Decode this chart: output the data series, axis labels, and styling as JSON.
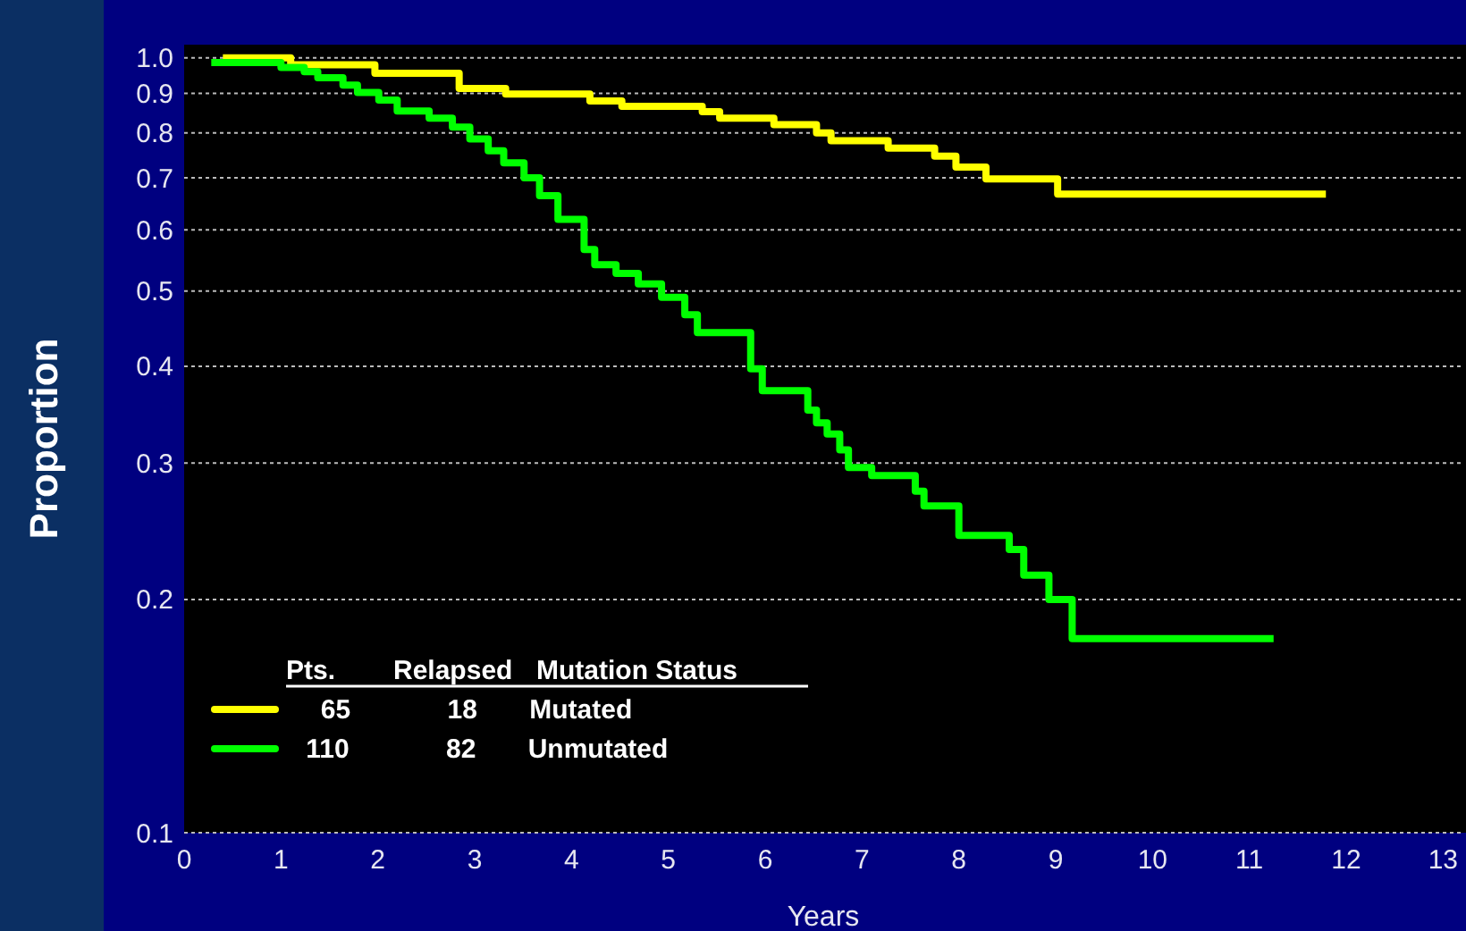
{
  "chart_data": {
    "type": "step",
    "xlabel": "Years",
    "ylabel": "Proportion",
    "log": "y",
    "xlim": [
      0,
      13.2
    ],
    "ylim": [
      0.1,
      1.04
    ],
    "xticks": [
      0,
      1,
      2,
      3,
      4,
      5,
      6,
      7,
      8,
      9,
      10,
      11,
      12,
      13
    ],
    "yticks": [
      {
        "value": 0.1,
        "label": "0.1"
      },
      0.2,
      0.3,
      0.4,
      0.5,
      0.6,
      0.7,
      0.8,
      0.9,
      {
        "value": 1,
        "label": "1.0"
      }
    ],
    "grid": "y",
    "legend": "bottom left",
    "legend_title": "Pts. Relapsed Mutation Status",
    "series": [
      {
        "name": "65 18 Mutated",
        "color": "#ffff00",
        "x": [
          0.4,
          1.1,
          1.97,
          2.84,
          3.32,
          4.19,
          4.52,
          5.35,
          5.53,
          6.09,
          6.53,
          6.68,
          7.27,
          7.75,
          7.97,
          8.28,
          9.02,
          11.79
        ],
        "values": [
          1.0,
          0.98,
          0.955,
          0.913,
          0.898,
          0.88,
          0.866,
          0.852,
          0.836,
          0.82,
          0.8,
          0.782,
          0.765,
          0.747,
          0.723,
          0.698,
          0.667,
          0.667
        ]
      },
      {
        "name": "110 82 Unmutated",
        "color": "#00ff00",
        "x": [
          0.28,
          1.0,
          1.24,
          1.38,
          1.64,
          1.79,
          2.01,
          2.2,
          2.53,
          2.77,
          2.95,
          3.14,
          3.3,
          3.51,
          3.67,
          3.86,
          4.13,
          4.24,
          4.46,
          4.69,
          4.93,
          5.17,
          5.3,
          5.85,
          5.97,
          6.44,
          6.53,
          6.64,
          6.77,
          6.86,
          7.1,
          7.55,
          7.64,
          8.0,
          8.52,
          8.67,
          8.93,
          9.17,
          11.25
        ],
        "values": [
          0.986,
          0.972,
          0.96,
          0.943,
          0.922,
          0.902,
          0.882,
          0.854,
          0.836,
          0.814,
          0.786,
          0.759,
          0.732,
          0.7,
          0.664,
          0.619,
          0.566,
          0.541,
          0.527,
          0.511,
          0.491,
          0.466,
          0.442,
          0.397,
          0.372,
          0.351,
          0.338,
          0.327,
          0.312,
          0.296,
          0.289,
          0.276,
          0.264,
          0.242,
          0.232,
          0.215,
          0.2,
          0.178,
          0.178
        ]
      }
    ]
  }
}
